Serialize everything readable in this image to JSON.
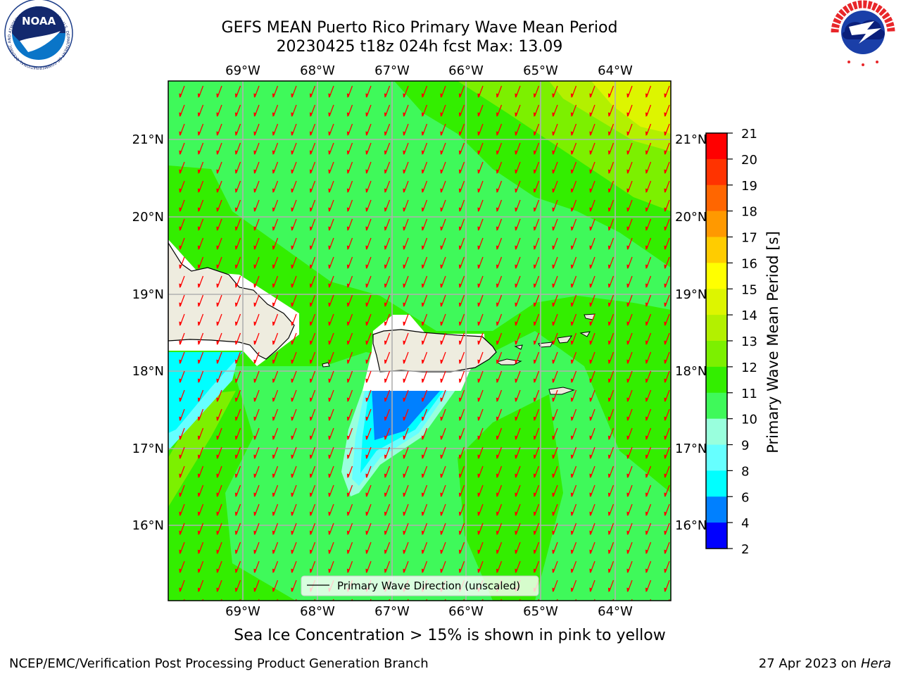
{
  "title": {
    "line1": "GEFS MEAN Puerto Rico Primary Wave Mean Period",
    "line2": "20230425 t18z 024h fcst   Max: 13.09"
  },
  "logos": {
    "left": {
      "icon": "noaa-logo",
      "text": "NOAA",
      "ring_text": "NATIONAL OCEANIC AND ATMOSPHERIC ADMINISTRATION · U.S. DEPARTMENT OF COMMERCE"
    },
    "right": {
      "icon": "nws-logo",
      "ring_text": "NATIONAL WEATHER SERVICE"
    }
  },
  "map": {
    "lon_labels": [
      "69°W",
      "68°W",
      "67°W",
      "66°W",
      "65°W",
      "64°W"
    ],
    "lat_labels": [
      "21°N",
      "20°N",
      "19°N",
      "18°N",
      "17°N",
      "16°N"
    ],
    "legend_label": "Primary Wave Direction (unscaled)",
    "arrow_direction": "toward south-southwest",
    "arrow_color": "#ff0000",
    "land_color": "#eeecdf"
  },
  "colorbar": {
    "label": "Primary Wave Mean Period [s]",
    "ticks": [
      "21",
      "20",
      "19",
      "18",
      "17",
      "16",
      "15",
      "14",
      "13",
      "12",
      "11",
      "10",
      "9",
      "8",
      "6",
      "4",
      "2"
    ],
    "colors": [
      "#ff0000",
      "#ff3300",
      "#ff6600",
      "#ff9900",
      "#ffcc00",
      "#ffff00",
      "#ddf500",
      "#b3f000",
      "#7cf000",
      "#33ee00",
      "#3ff95a",
      "#99ffdd",
      "#66ffff",
      "#00ffff",
      "#0080ff",
      "#0000ff"
    ]
  },
  "footer": {
    "sea_ice_note": "Sea Ice Concentration > 15% is shown in pink to yellow",
    "branch": "NCEP/EMC/Verification Post Processing Product Generation Branch",
    "date": "27 Apr 2023 on ",
    "host": "Hera"
  }
}
